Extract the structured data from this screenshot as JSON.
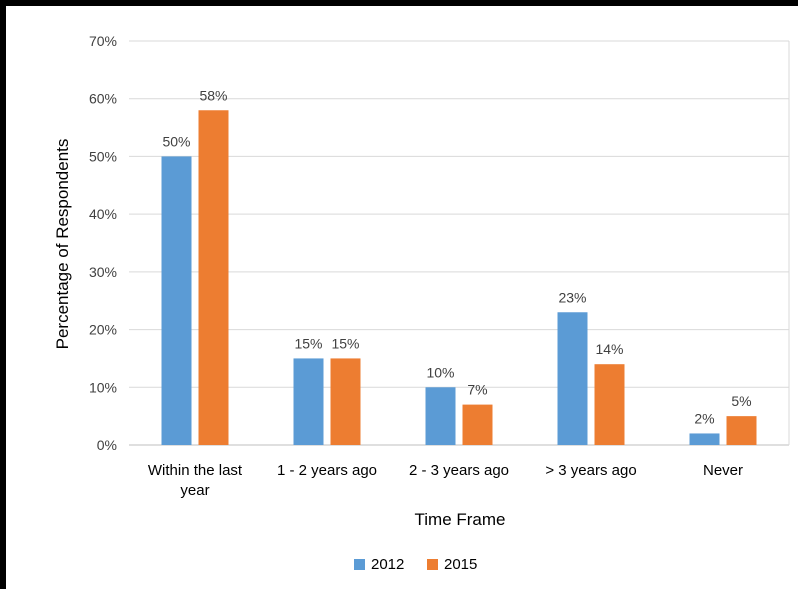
{
  "chart_data": {
    "type": "bar",
    "title": "",
    "xlabel": "Time Frame",
    "ylabel": "Percentage of Respondents",
    "categories": [
      [
        "Within the last",
        "year"
      ],
      [
        "1 - 2 years ago"
      ],
      [
        "2 - 3 years ago"
      ],
      [
        "> 3 years ago"
      ],
      [
        "Never"
      ]
    ],
    "series": [
      {
        "name": "2012",
        "color": "#5B9BD5",
        "values": [
          50,
          15,
          10,
          23,
          2
        ],
        "labels": [
          "50%",
          "15%",
          "10%",
          "23%",
          "2%"
        ]
      },
      {
        "name": "2015",
        "color": "#ED7D31",
        "values": [
          58,
          15,
          7,
          14,
          5
        ],
        "labels": [
          "58%",
          "15%",
          "7%",
          "14%",
          "5%"
        ]
      }
    ],
    "ylim": [
      0,
      70
    ],
    "yticks": [
      "0%",
      "10%",
      "20%",
      "30%",
      "40%",
      "50%",
      "60%",
      "70%"
    ],
    "grid": true,
    "legend_position": "bottom"
  }
}
